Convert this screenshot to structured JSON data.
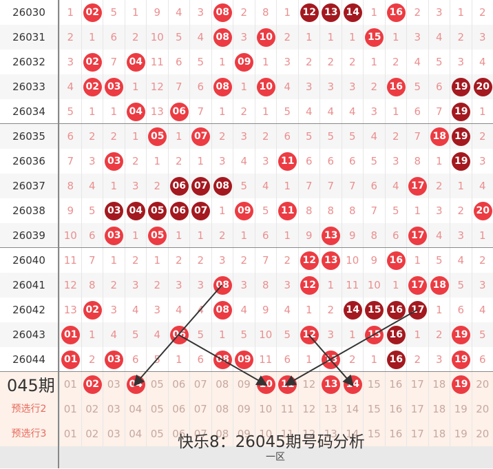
{
  "title": "快乐8：26045期号码分析",
  "next_period_label": "045期",
  "zone_label": "一区",
  "colors": {
    "hit_red": "#ec3b42",
    "hit_dark": "#a3191f",
    "omit_text": "#eb8f8f",
    "pred_label": "#e8695a"
  },
  "rows": [
    {
      "period": "26030",
      "cells": [
        1,
        "02",
        5,
        1,
        9,
        4,
        3,
        "08",
        2,
        8,
        1,
        "12",
        "13",
        "14",
        1,
        "16",
        2,
        3,
        1,
        2
      ],
      "dark": [
        "12",
        "13",
        "14"
      ]
    },
    {
      "period": "26031",
      "cells": [
        2,
        1,
        6,
        2,
        10,
        5,
        4,
        "08",
        3,
        "10",
        2,
        1,
        1,
        1,
        "15",
        1,
        3,
        4,
        2,
        3
      ],
      "dark": []
    },
    {
      "period": "26032",
      "cells": [
        3,
        "02",
        7,
        "04",
        11,
        6,
        5,
        1,
        "09",
        1,
        3,
        2,
        2,
        2,
        1,
        2,
        4,
        5,
        3,
        4
      ],
      "dark": []
    },
    {
      "period": "26033",
      "cells": [
        4,
        "02",
        "03",
        1,
        12,
        7,
        6,
        "08",
        1,
        "10",
        4,
        3,
        3,
        3,
        2,
        "16",
        5,
        6,
        "19",
        "20"
      ],
      "dark": [
        "19",
        "20"
      ]
    },
    {
      "period": "26034",
      "cells": [
        5,
        1,
        1,
        "04",
        13,
        "06",
        7,
        1,
        2,
        1,
        5,
        4,
        4,
        4,
        3,
        1,
        6,
        7,
        "19",
        1
      ],
      "dark": [
        "19"
      ]
    },
    {
      "period": "26035",
      "cells": [
        6,
        2,
        2,
        1,
        "05",
        1,
        "07",
        2,
        3,
        2,
        6,
        5,
        5,
        5,
        4,
        2,
        7,
        "18",
        "19",
        2
      ],
      "dark": [
        "19"
      ]
    },
    {
      "period": "26036",
      "cells": [
        7,
        3,
        "03",
        2,
        1,
        2,
        1,
        3,
        4,
        3,
        "11",
        6,
        6,
        6,
        5,
        3,
        8,
        1,
        "19",
        3
      ],
      "dark": [
        "19"
      ]
    },
    {
      "period": "26037",
      "cells": [
        8,
        4,
        1,
        3,
        2,
        "06",
        "07",
        "08",
        5,
        4,
        1,
        7,
        7,
        7,
        6,
        4,
        "17",
        2,
        1,
        4
      ],
      "dark": [
        "06",
        "07",
        "08"
      ]
    },
    {
      "period": "26038",
      "cells": [
        9,
        5,
        "03",
        "04",
        "05",
        "06",
        "07",
        1,
        "09",
        5,
        "11",
        8,
        8,
        8,
        7,
        5,
        1,
        3,
        2,
        "20"
      ],
      "dark": [
        "03",
        "04",
        "05",
        "06",
        "07"
      ]
    },
    {
      "period": "26039",
      "cells": [
        10,
        6,
        "03",
        1,
        "05",
        1,
        1,
        2,
        1,
        6,
        1,
        9,
        "13",
        9,
        8,
        6,
        "17",
        4,
        3,
        1
      ],
      "dark": []
    },
    {
      "period": "26040",
      "cells": [
        11,
        7,
        1,
        2,
        1,
        2,
        2,
        3,
        2,
        7,
        2,
        "12",
        "13",
        10,
        9,
        "16",
        1,
        5,
        4,
        2
      ],
      "dark": []
    },
    {
      "period": "26041",
      "cells": [
        12,
        8,
        2,
        3,
        2,
        3,
        3,
        "08",
        3,
        8,
        3,
        "12",
        1,
        11,
        10,
        1,
        "17",
        "18",
        5,
        3
      ],
      "dark": []
    },
    {
      "period": "26042",
      "cells": [
        13,
        "02",
        3,
        4,
        3,
        4,
        4,
        "08",
        4,
        9,
        4,
        1,
        2,
        "14",
        "15",
        "16",
        "17",
        1,
        6,
        4
      ],
      "dark": [
        "14",
        "15",
        "16",
        "17"
      ]
    },
    {
      "period": "26043",
      "cells": [
        "01",
        1,
        4,
        5,
        4,
        "06",
        5,
        1,
        5,
        10,
        5,
        "12",
        3,
        1,
        "15",
        "16",
        1,
        2,
        "19",
        5
      ],
      "dark": [
        "16"
      ]
    },
    {
      "period": "26044",
      "cells": [
        "01",
        2,
        "03",
        6,
        5,
        1,
        6,
        "08",
        "09",
        11,
        6,
        1,
        "13",
        2,
        1,
        "16",
        2,
        3,
        "19",
        6
      ],
      "dark": [
        "16"
      ]
    }
  ],
  "pred_rows": [
    {
      "label": "",
      "cells": [
        "01",
        "02",
        "03",
        "04",
        "05",
        "06",
        "07",
        "08",
        "09",
        "10",
        "11",
        "12",
        "13",
        "14",
        "15",
        "16",
        "17",
        "18",
        "19",
        "20"
      ],
      "hits": [
        "02",
        "04",
        "10",
        "11",
        "13",
        "14",
        "19"
      ]
    },
    {
      "label": "预选行2",
      "cells": [
        "01",
        "02",
        "03",
        "04",
        "05",
        "06",
        "07",
        "08",
        "09",
        "10",
        "11",
        "12",
        "13",
        "14",
        "15",
        "16",
        "17",
        "18",
        "19",
        "20"
      ],
      "hits": []
    },
    {
      "label": "预选行3",
      "cells": [
        "01",
        "02",
        "03",
        "04",
        "05",
        "06",
        "07",
        "08",
        "09",
        "10",
        "11",
        "12",
        "13",
        "14",
        "15",
        "16",
        "17",
        "18",
        "19",
        "20"
      ],
      "hits": []
    }
  ]
}
